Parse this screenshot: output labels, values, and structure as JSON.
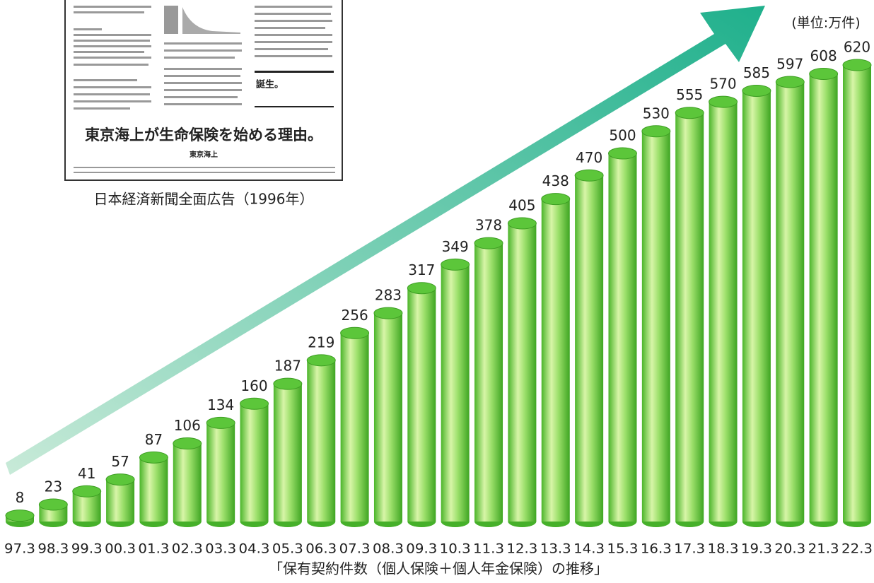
{
  "chart_data": {
    "type": "bar",
    "categories": [
      "97.3",
      "98.3",
      "99.3",
      "00.3",
      "01.3",
      "02.3",
      "03.3",
      "04.3",
      "05.3",
      "06.3",
      "07.3",
      "08.3",
      "09.3",
      "10.3",
      "11.3",
      "12.3",
      "13.3",
      "14.3",
      "15.3",
      "16.3",
      "17.3",
      "18.3",
      "19.3",
      "20.3",
      "21.3",
      "22.3"
    ],
    "values": [
      8,
      23,
      41,
      57,
      87,
      106,
      134,
      160,
      187,
      219,
      256,
      283,
      317,
      349,
      378,
      405,
      438,
      470,
      500,
      530,
      555,
      570,
      585,
      597,
      608,
      620
    ],
    "color": "#5cc63a",
    "unit": "(単位:万件)",
    "caption": "「保有契約件数（個人保険＋個人年金保険）の推移」"
  },
  "newspaper": {
    "headline": "東京海上が生命保険を始める理由。",
    "tagline": "誕生。",
    "company": "東京海上",
    "caption": "日本経済新聞全面広告（1996年）"
  }
}
